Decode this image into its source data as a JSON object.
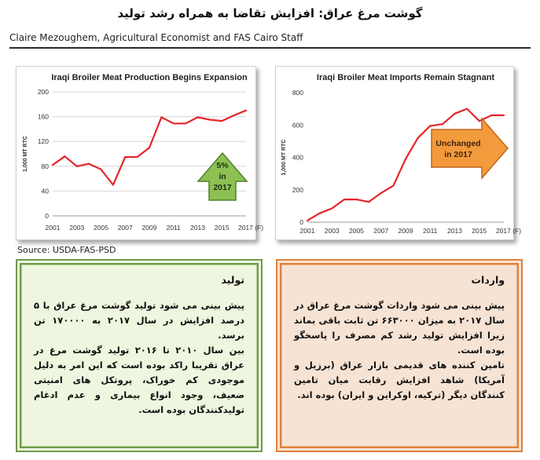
{
  "page": {
    "title": "گوشت مرغ عراق: افزایش تقاضا به همراه رشد تولید",
    "byline": "Claire Mezoughem, Agricultural Economist and FAS Cairo Staff",
    "source": "Source: USDA-FAS-PSD"
  },
  "colors": {
    "line": "#e8242a",
    "production_frame": "#6e9a4a",
    "imports_frame": "#e07f3a",
    "green_arrow": "#8cc152",
    "orange_arrow": "#f39a3c"
  },
  "chart_data": [
    {
      "type": "line",
      "title": "Iraqi Broiler Meat Production Begins Expansion",
      "ylabel": "1,000 MT RTC",
      "xlabel": "",
      "x": [
        2001,
        2002,
        2003,
        2004,
        2005,
        2006,
        2007,
        2008,
        2009,
        2010,
        2011,
        2012,
        2013,
        2014,
        2015,
        2016,
        2017
      ],
      "values": [
        82,
        96,
        80,
        84,
        75,
        50,
        95,
        95,
        110,
        159,
        149,
        149,
        159,
        155,
        153,
        162,
        170
      ],
      "x_tick_labels": [
        "2001",
        "2003",
        "2005",
        "2007",
        "2009",
        "2011",
        "2013",
        "2015",
        "2017 (F)"
      ],
      "y_ticks": [
        "0",
        "40",
        "80",
        "120",
        "160",
        "200"
      ],
      "ylim": [
        0,
        200
      ],
      "grid": true,
      "line_color": "#e8242a",
      "callout": {
        "lines": [
          "5%",
          "in",
          "2017"
        ],
        "shape": "up-arrow",
        "color": "#8cc152"
      }
    },
    {
      "type": "line",
      "title": "Iraqi Broiler Meat Imports Remain Stagnant",
      "ylabel": "1,000 MT RTC",
      "xlabel": "",
      "x": [
        2001,
        2002,
        2003,
        2004,
        2005,
        2006,
        2007,
        2008,
        2009,
        2010,
        2011,
        2012,
        2013,
        2014,
        2015,
        2016,
        2017
      ],
      "values": [
        10,
        55,
        85,
        140,
        140,
        125,
        180,
        225,
        390,
        520,
        595,
        605,
        670,
        700,
        625,
        660,
        660
      ],
      "x_tick_labels": [
        "2001",
        "2003",
        "2005",
        "2007",
        "2009",
        "2011",
        "2013",
        "2015",
        "2017 (F)"
      ],
      "y_ticks": [
        "0",
        "200",
        "400",
        "600",
        "800"
      ],
      "ylim": [
        0,
        800
      ],
      "grid": false,
      "line_color": "#e8242a",
      "callout": {
        "lines": [
          "Unchanged",
          "in 2017"
        ],
        "shape": "right-arrow",
        "color": "#f39a3c"
      }
    }
  ],
  "boxes": {
    "production": {
      "heading": "تولید",
      "paragraphs": [
        "پیش بینی می شود تولید گوشت مرغ عراق با ۵ درصد افزایش در سال ۲۰۱۷ به ۱۷۰۰۰۰ تن برسد.",
        "بین سال ۲۰۱۰ تا ۲۰۱۶ تولید گوشت مرغ در عراق تقریبا راکد بوده است که این امر به دلیل موجودی کم خوراک، پروتکل های امنیتی ضعیف، وجود انواع بیماری و عدم ادغام تولیدکنندگان بوده است."
      ]
    },
    "imports": {
      "heading": "واردات",
      "paragraphs": [
        "پیش بینی می شود واردات گوشت مرغ عراق در سال ۲۰۱۷ به میزان ۶۶۳۰۰۰ تن ثابت باقی بماند زیرا افزایش تولید رشد کم مصرف را پاسخگو بوده است.",
        "تامین کننده های قدیمی بازار عراق (برزیل و آمریکا) شاهد افزایش رقابت میان تامین کنندگان دیگر (ترکیه، اوکراین و ایران) بوده اند."
      ]
    }
  }
}
